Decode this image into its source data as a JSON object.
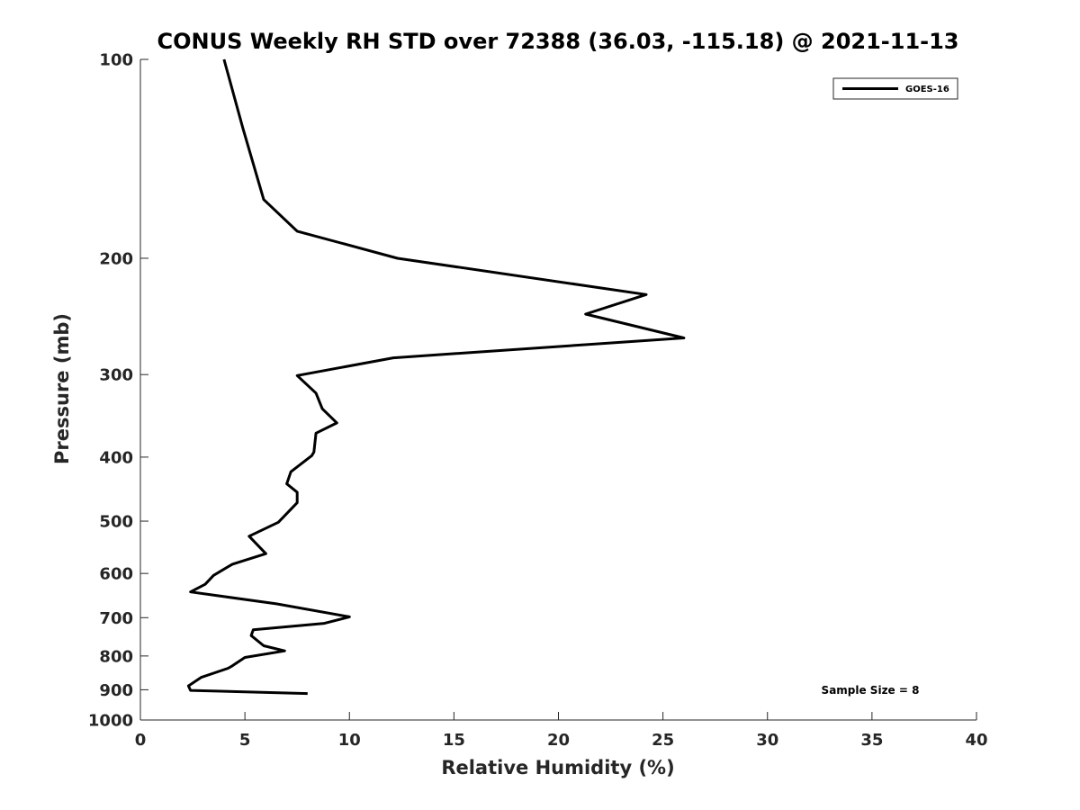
{
  "chart_data": {
    "type": "line",
    "title": "CONUS Weekly RH STD over 72388 (36.03, -115.18) @ 2021-11-13",
    "xlabel": "Relative Humidity (%)",
    "ylabel": "Pressure (mb)",
    "xlim": [
      0,
      40
    ],
    "ylim": [
      100,
      1000
    ],
    "y_scale": "log",
    "y_reversed": true,
    "x_ticks": [
      0,
      5,
      10,
      15,
      20,
      25,
      30,
      35,
      40
    ],
    "y_ticks": [
      100,
      200,
      300,
      400,
      500,
      600,
      700,
      800,
      900,
      1000
    ],
    "grid": false,
    "legend": {
      "position": "top-right",
      "entries": [
        "GOES-16"
      ]
    },
    "annotation": "Sample Size = 8",
    "series": [
      {
        "name": "GOES-16",
        "color": "#000000",
        "x": [
          4.0,
          4.9,
          5.9,
          7.5,
          12.3,
          24.2,
          21.3,
          26.0,
          12.1,
          7.5,
          8.4,
          8.7,
          9.4,
          8.4,
          8.3,
          8.2,
          7.2,
          7.0,
          7.5,
          7.5,
          6.6,
          5.2,
          6.0,
          4.4,
          3.5,
          3.1,
          2.4,
          6.5,
          10.0,
          8.8,
          5.4,
          5.3,
          5.9,
          6.9,
          5.0,
          4.4,
          4.2,
          2.9,
          2.3,
          2.4,
          8.0
        ],
        "y": [
          100,
          127,
          163,
          182,
          200,
          227,
          243,
          264,
          283,
          301,
          320,
          338,
          355,
          368,
          393,
          398,
          421,
          439,
          452,
          469,
          502,
          527,
          560,
          581,
          604,
          623,
          640,
          667,
          698,
          714,
          730,
          745,
          772,
          786,
          804,
          828,
          835,
          862,
          888,
          902,
          912
        ]
      }
    ]
  }
}
